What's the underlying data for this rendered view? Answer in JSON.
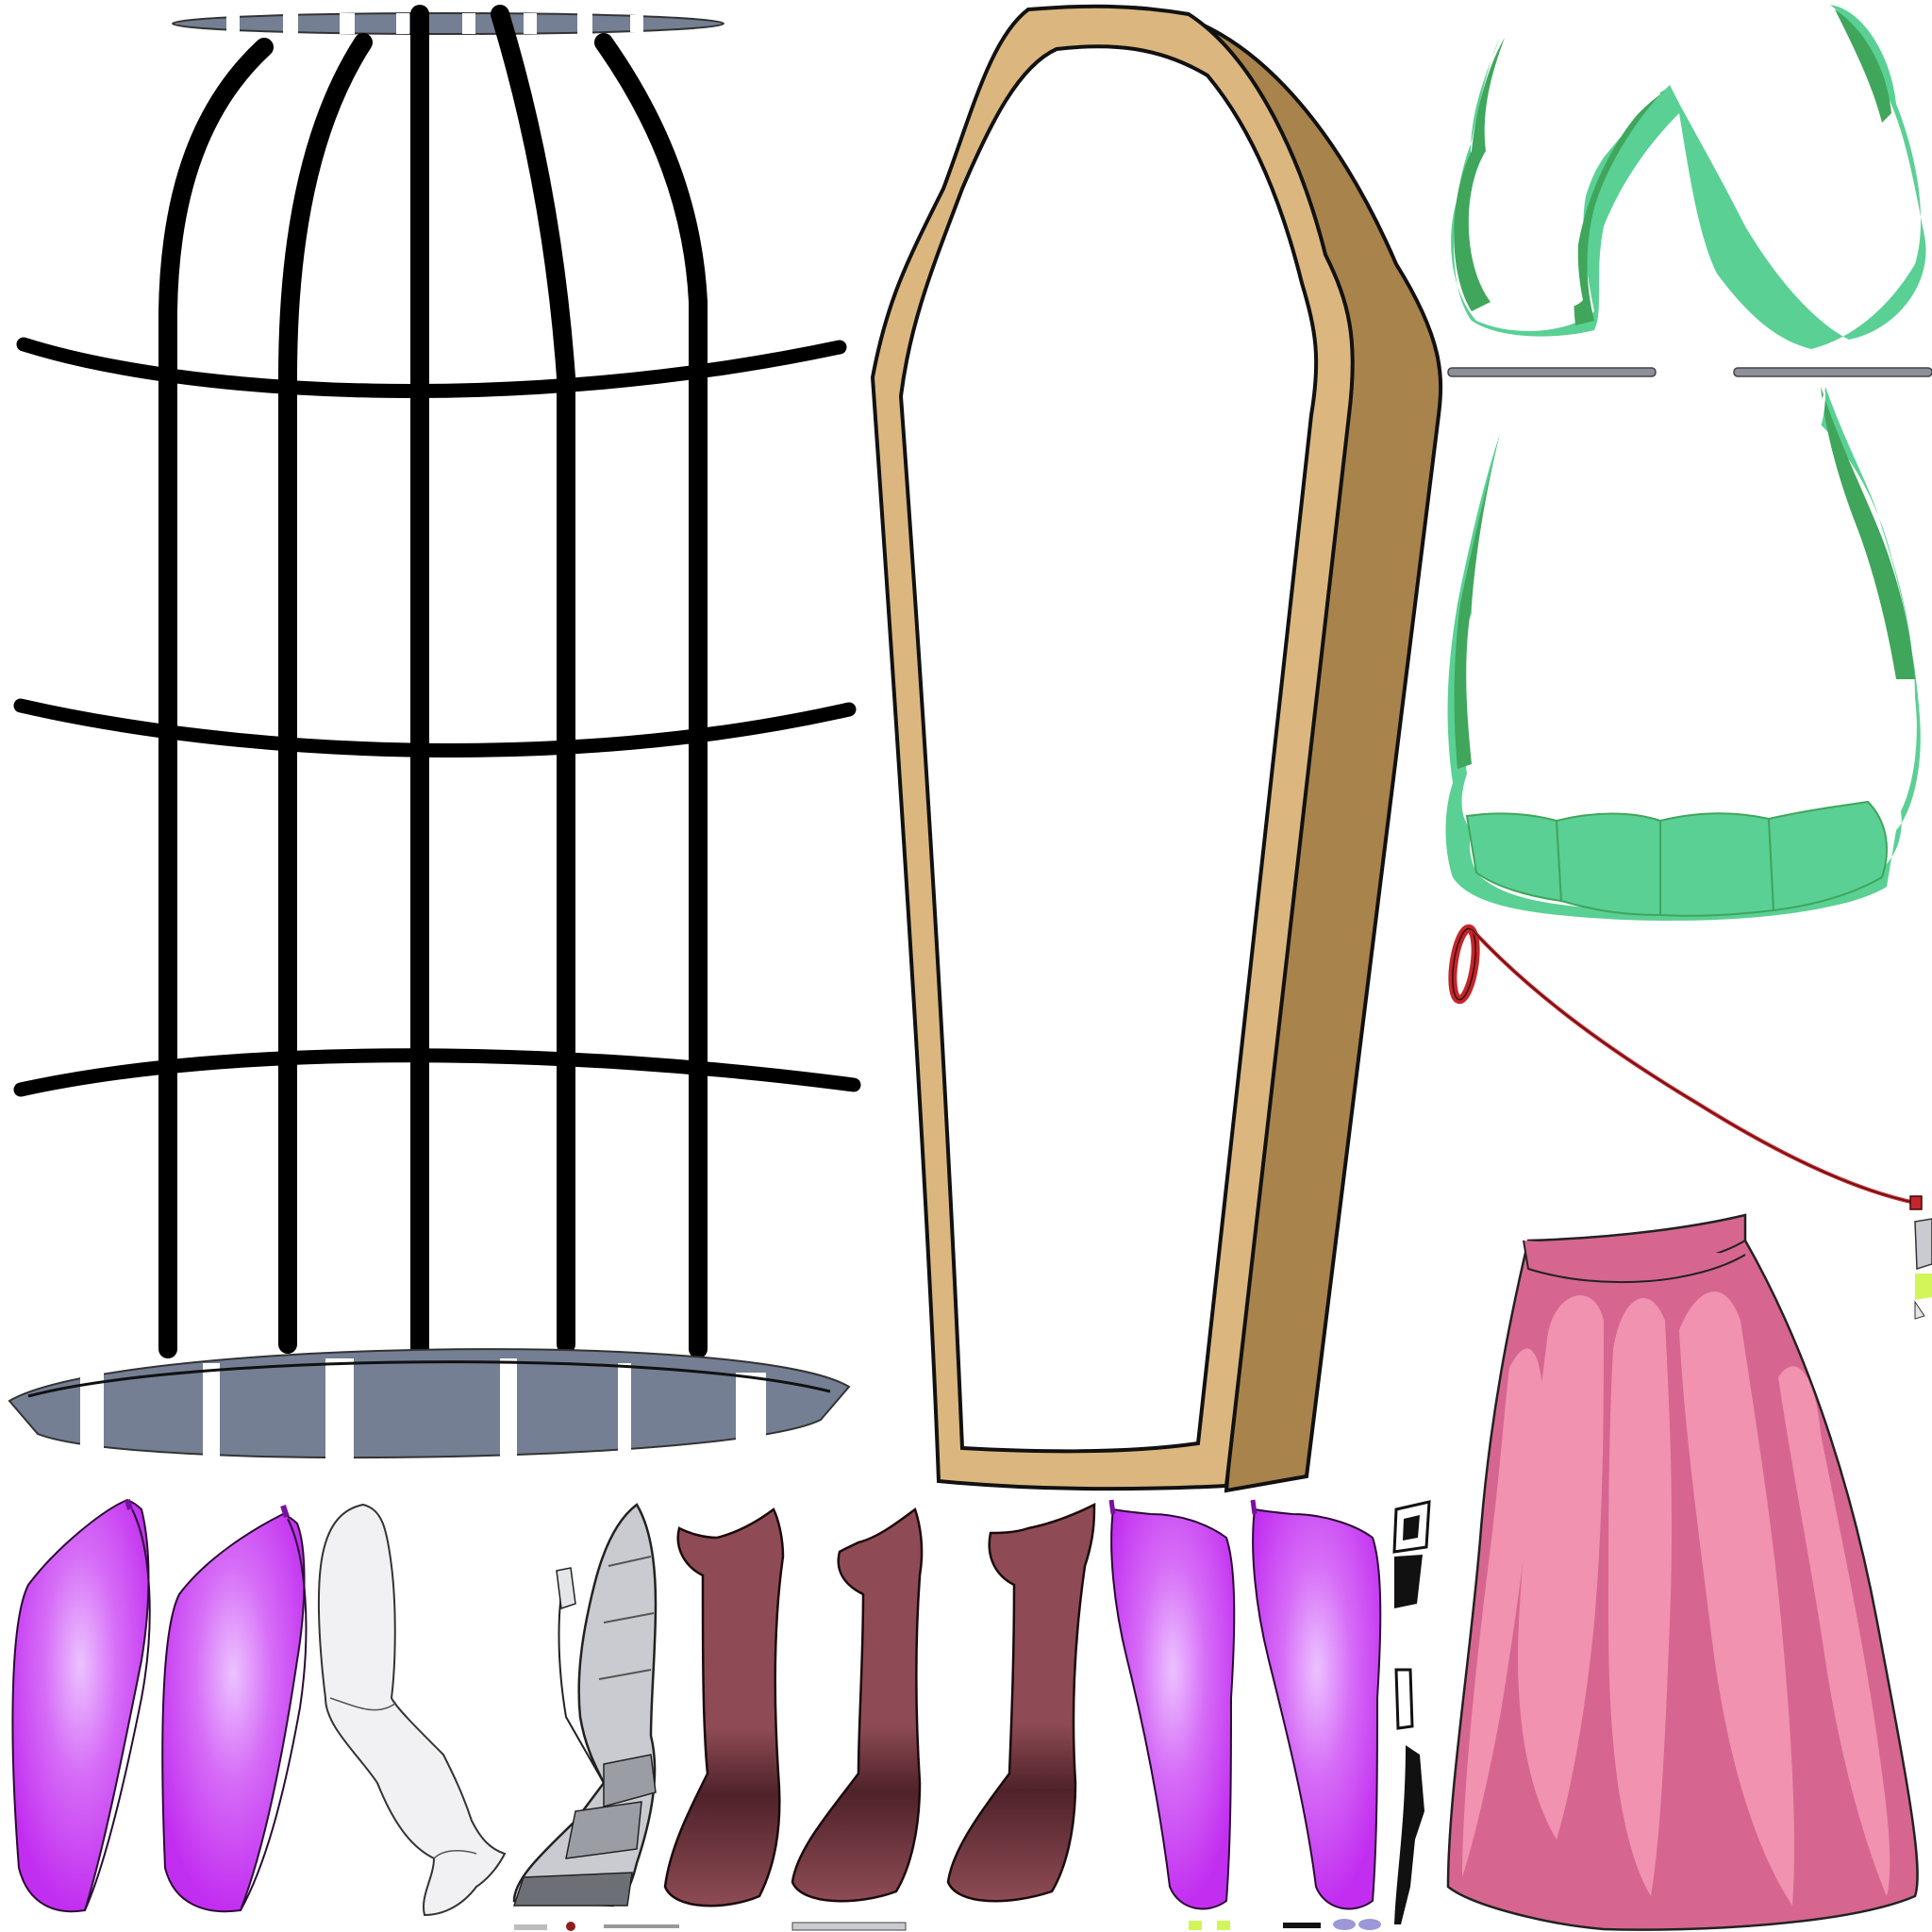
{
  "sheet": {
    "description_free": true,
    "items": [
      {
        "name": "birdcage",
        "colors": {
          "bars": "#000000",
          "tray": "#747f93",
          "stripe": "#ffffff"
        }
      },
      {
        "name": "coffin",
        "colors": {
          "rim": "#dbb77f",
          "side": "#a8834b",
          "outline": "#111111"
        }
      },
      {
        "name": "apron-bib",
        "colors": {
          "light": "#5ad094",
          "dark": "#3fa65c"
        }
      },
      {
        "name": "apron-skirt",
        "colors": {
          "light": "#5ad094",
          "dark": "#3fa65c"
        }
      },
      {
        "name": "red-ribbon",
        "colors": {
          "main": "#c3262b"
        }
      },
      {
        "name": "pink-skirt",
        "colors": {
          "light": "#f092b0",
          "dark": "#d6668f"
        }
      },
      {
        "name": "purple-sleeves",
        "colors": {
          "main": "#c530f2",
          "highlight": "#e9b4ff"
        }
      },
      {
        "name": "white-sleeve",
        "colors": {
          "main": "#f1f1f4"
        }
      },
      {
        "name": "armor-boot",
        "colors": {
          "main": "#c9cbd0",
          "dark": "#6c6f75"
        }
      },
      {
        "name": "maroon-boots",
        "colors": {
          "main": "#8e4b55",
          "shadow": "#4f2229"
        }
      },
      {
        "name": "black-strips",
        "colors": {
          "main": "#111111"
        }
      }
    ]
  }
}
